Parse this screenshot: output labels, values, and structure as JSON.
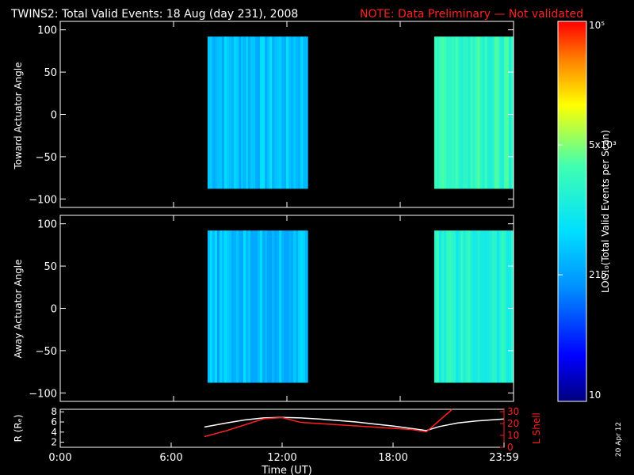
{
  "header": {
    "title": "TWINS2: Total Valid Events: 18 Aug (day 231), 2008",
    "note": "NOTE: Data Preliminary — Not validated",
    "note_color": "#ff2020"
  },
  "colorbar": {
    "label": "LOG₁₀(Total Valid Events per Scan)",
    "tick_labels": [
      "10",
      "215",
      "5x10³",
      "10⁵"
    ],
    "tick_values": [
      10,
      215,
      5000,
      100000
    ],
    "range": [
      10,
      100000
    ],
    "scale": "log"
  },
  "stamp": "20 Apr 12",
  "chart_data": [
    {
      "type": "heatmap",
      "ylabel": "Toward Actuator Angle",
      "xlim": [
        0,
        24
      ],
      "ylim": [
        -110,
        110
      ],
      "y_ticks": [
        -100,
        -50,
        0,
        50,
        100
      ],
      "y_tick_labels": [
        "−100",
        "−50",
        "0",
        "50",
        "100"
      ],
      "data_y_range": [
        -88,
        92
      ],
      "blocks": [
        {
          "x_start_hr": 7.8,
          "x_end_hr": 13.1,
          "typical_counts": 400
        },
        {
          "x_start_hr": 19.8,
          "x_end_hr": 24.0,
          "typical_counts": 2000
        }
      ]
    },
    {
      "type": "heatmap",
      "ylabel": "Away Actuator Angle",
      "xlim": [
        0,
        24
      ],
      "ylim": [
        -110,
        110
      ],
      "y_ticks": [
        -100,
        -50,
        0,
        50,
        100
      ],
      "y_tick_labels": [
        "−100",
        "−50",
        "0",
        "50",
        "100"
      ],
      "data_y_range": [
        -88,
        92
      ],
      "blocks": [
        {
          "x_start_hr": 7.8,
          "x_end_hr": 13.1,
          "typical_counts": 350
        },
        {
          "x_start_hr": 19.8,
          "x_end_hr": 24.0,
          "typical_counts": 1500
        }
      ]
    },
    {
      "type": "line",
      "xlabel": "Time (UT)",
      "x_ticks": [
        0,
        6,
        12,
        18,
        24
      ],
      "x_tick_labels": [
        "0:00",
        "6:00",
        "12:00",
        "18:00",
        "23:59"
      ],
      "ylabel_left": "R (Rₑ)",
      "ylabel_right": "L Shell",
      "ylim_left": [
        1,
        8.5
      ],
      "ylim_right": [
        0,
        32
      ],
      "left_ticks": [
        2,
        4,
        6,
        8
      ],
      "right_ticks": [
        0,
        10,
        20,
        30
      ],
      "series": [
        {
          "axis": "left",
          "color": "#ffffff",
          "x": [
            7.8,
            9,
            10,
            11,
            12,
            13,
            14,
            15,
            16,
            17,
            18,
            19,
            19.8,
            20.5,
            21.5,
            22.5,
            24
          ],
          "y": [
            5.0,
            5.8,
            6.4,
            6.8,
            6.9,
            6.8,
            6.6,
            6.3,
            6.0,
            5.6,
            5.2,
            4.7,
            4.3,
            5.1,
            5.8,
            6.2,
            6.6
          ]
        },
        {
          "axis": "right",
          "color": "#ff2020",
          "x": [
            7.8,
            9,
            10,
            11,
            12,
            13,
            15,
            17,
            19,
            19.8,
            21.2
          ],
          "y": [
            9,
            14,
            19,
            24,
            25,
            21,
            19,
            17,
            15,
            13,
            32
          ]
        }
      ]
    }
  ]
}
